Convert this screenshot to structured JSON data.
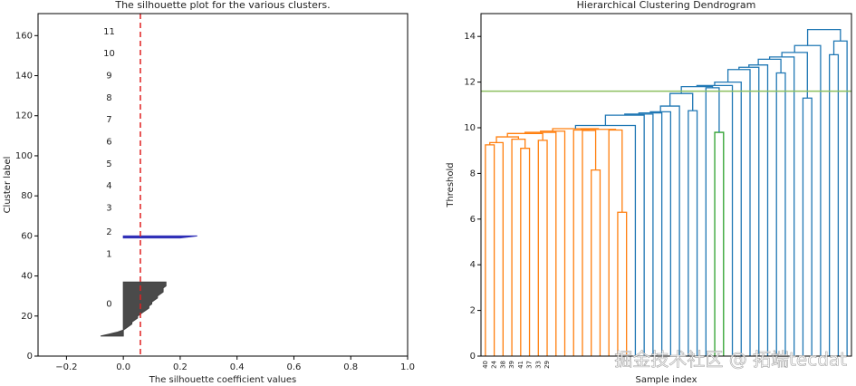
{
  "chart_data": [
    {
      "type": "silhouette",
      "title": "The silhouette plot for the various clusters.",
      "x_label": "The silhouette coefficient values",
      "y_label": "Cluster label",
      "xlim": [
        -0.3,
        1.0
      ],
      "ylim": [
        0,
        171
      ],
      "xticks": [
        {
          "value": -0.2,
          "label": "−0.2"
        },
        {
          "value": 0,
          "label": "0.0"
        },
        {
          "value": 0.2,
          "label": "0.2"
        },
        {
          "value": 0.4,
          "label": "0.4"
        },
        {
          "value": 0.6,
          "label": "0.6"
        },
        {
          "value": 0.8,
          "label": "0.8"
        },
        {
          "value": 1,
          "label": "1.0"
        }
      ],
      "yticks": [
        0,
        20,
        40,
        60,
        80,
        100,
        120,
        140,
        160
      ],
      "series": [
        {
          "name": "0",
          "color": "#404040",
          "y_start": 10,
          "values": [
            -0.08,
            -0.05,
            -0.02,
            0.0,
            0.01,
            0.02,
            0.03,
            0.03,
            0.04,
            0.05,
            0.05,
            0.06,
            0.07,
            0.08,
            0.09,
            0.09,
            0.1,
            0.1,
            0.11,
            0.12,
            0.12,
            0.13,
            0.14,
            0.14,
            0.14,
            0.15,
            0.15,
            0.15
          ]
        },
        {
          "name": "2",
          "color": "#2b2bb5",
          "y_start": 59,
          "values": [
            0.2,
            0.26
          ]
        }
      ],
      "cluster_labels": [
        {
          "label": "0",
          "y": 26
        },
        {
          "label": "1",
          "y": 51
        },
        {
          "label": "2",
          "y": 62
        },
        {
          "label": "3",
          "y": 74
        },
        {
          "label": "4",
          "y": 85
        },
        {
          "label": "5",
          "y": 96
        },
        {
          "label": "6",
          "y": 107
        },
        {
          "label": "7",
          "y": 118
        },
        {
          "label": "8",
          "y": 129
        },
        {
          "label": "9",
          "y": 140
        },
        {
          "label": "10",
          "y": 151
        },
        {
          "label": "11",
          "y": 162
        }
      ],
      "cluster_label_x": -0.05,
      "average_score": 0.06,
      "average_color": "#e02020"
    },
    {
      "type": "dendrogram",
      "title": "Hierarchical Clustering Dendrogram",
      "x_label": "Sample index",
      "y_label": "Threshold",
      "ylim": [
        0,
        15
      ],
      "yticks": [
        0,
        2,
        4,
        6,
        8,
        10,
        12,
        14
      ],
      "leaf_labels": [
        "40",
        "24",
        "38",
        "39",
        "41",
        "37",
        "33",
        "29",
        null,
        null,
        null,
        null,
        null,
        null,
        null,
        null,
        null,
        null,
        null,
        null,
        null,
        null,
        null,
        null,
        null,
        null,
        null,
        null,
        null,
        null,
        null,
        null,
        null,
        null,
        null,
        null,
        null,
        null,
        null,
        null,
        null,
        null
      ],
      "merges": [
        [
          0,
          1,
          9.25
        ],
        [
          42,
          2,
          9.35
        ],
        [
          4,
          5,
          9.1
        ],
        [
          3,
          44,
          9.5
        ],
        [
          43,
          45,
          9.6
        ],
        [
          6,
          7,
          9.45
        ],
        [
          46,
          47,
          9.75
        ],
        [
          48,
          8,
          9.8
        ],
        [
          49,
          9,
          9.85
        ],
        [
          12,
          13,
          8.15
        ],
        [
          15,
          16,
          6.3
        ],
        [
          14,
          52,
          9.9
        ],
        [
          11,
          51,
          9.88
        ],
        [
          10,
          54,
          9.9
        ],
        [
          55,
          53,
          9.93
        ],
        [
          50,
          56,
          9.96
        ],
        [
          57,
          17,
          10.1
        ],
        [
          58,
          18,
          10.55
        ],
        [
          59,
          19,
          10.6
        ],
        [
          60,
          20,
          10.65
        ],
        [
          61,
          21,
          10.7
        ],
        [
          62,
          22,
          10.95
        ],
        [
          23,
          24,
          10.75
        ],
        [
          63,
          64,
          11.5
        ],
        [
          26,
          27,
          9.8
        ],
        [
          25,
          66,
          11.75
        ],
        [
          65,
          67,
          11.8
        ],
        [
          68,
          28,
          11.85
        ],
        [
          69,
          29,
          12.0
        ],
        [
          70,
          30,
          12.55
        ],
        [
          71,
          31,
          12.65
        ],
        [
          33,
          34,
          12.4
        ],
        [
          72,
          32,
          12.75
        ],
        [
          74,
          73,
          13.0
        ],
        [
          36,
          37,
          11.3
        ],
        [
          75,
          35,
          13.1
        ],
        [
          77,
          76,
          13.3
        ],
        [
          39,
          40,
          13.2
        ],
        [
          78,
          38,
          13.6
        ],
        [
          79,
          41,
          13.8
        ],
        [
          80,
          81,
          14.3
        ]
      ],
      "color_threshold": 10,
      "cluster_colors": [
        "#ff7f0e",
        "#2ca02c"
      ],
      "above_threshold_color": "#1f77b4",
      "cut_height": 11.6,
      "cut_color": "#8cbf5f"
    }
  ],
  "watermark": "掘金技术社区 @ 拓端tecdat"
}
